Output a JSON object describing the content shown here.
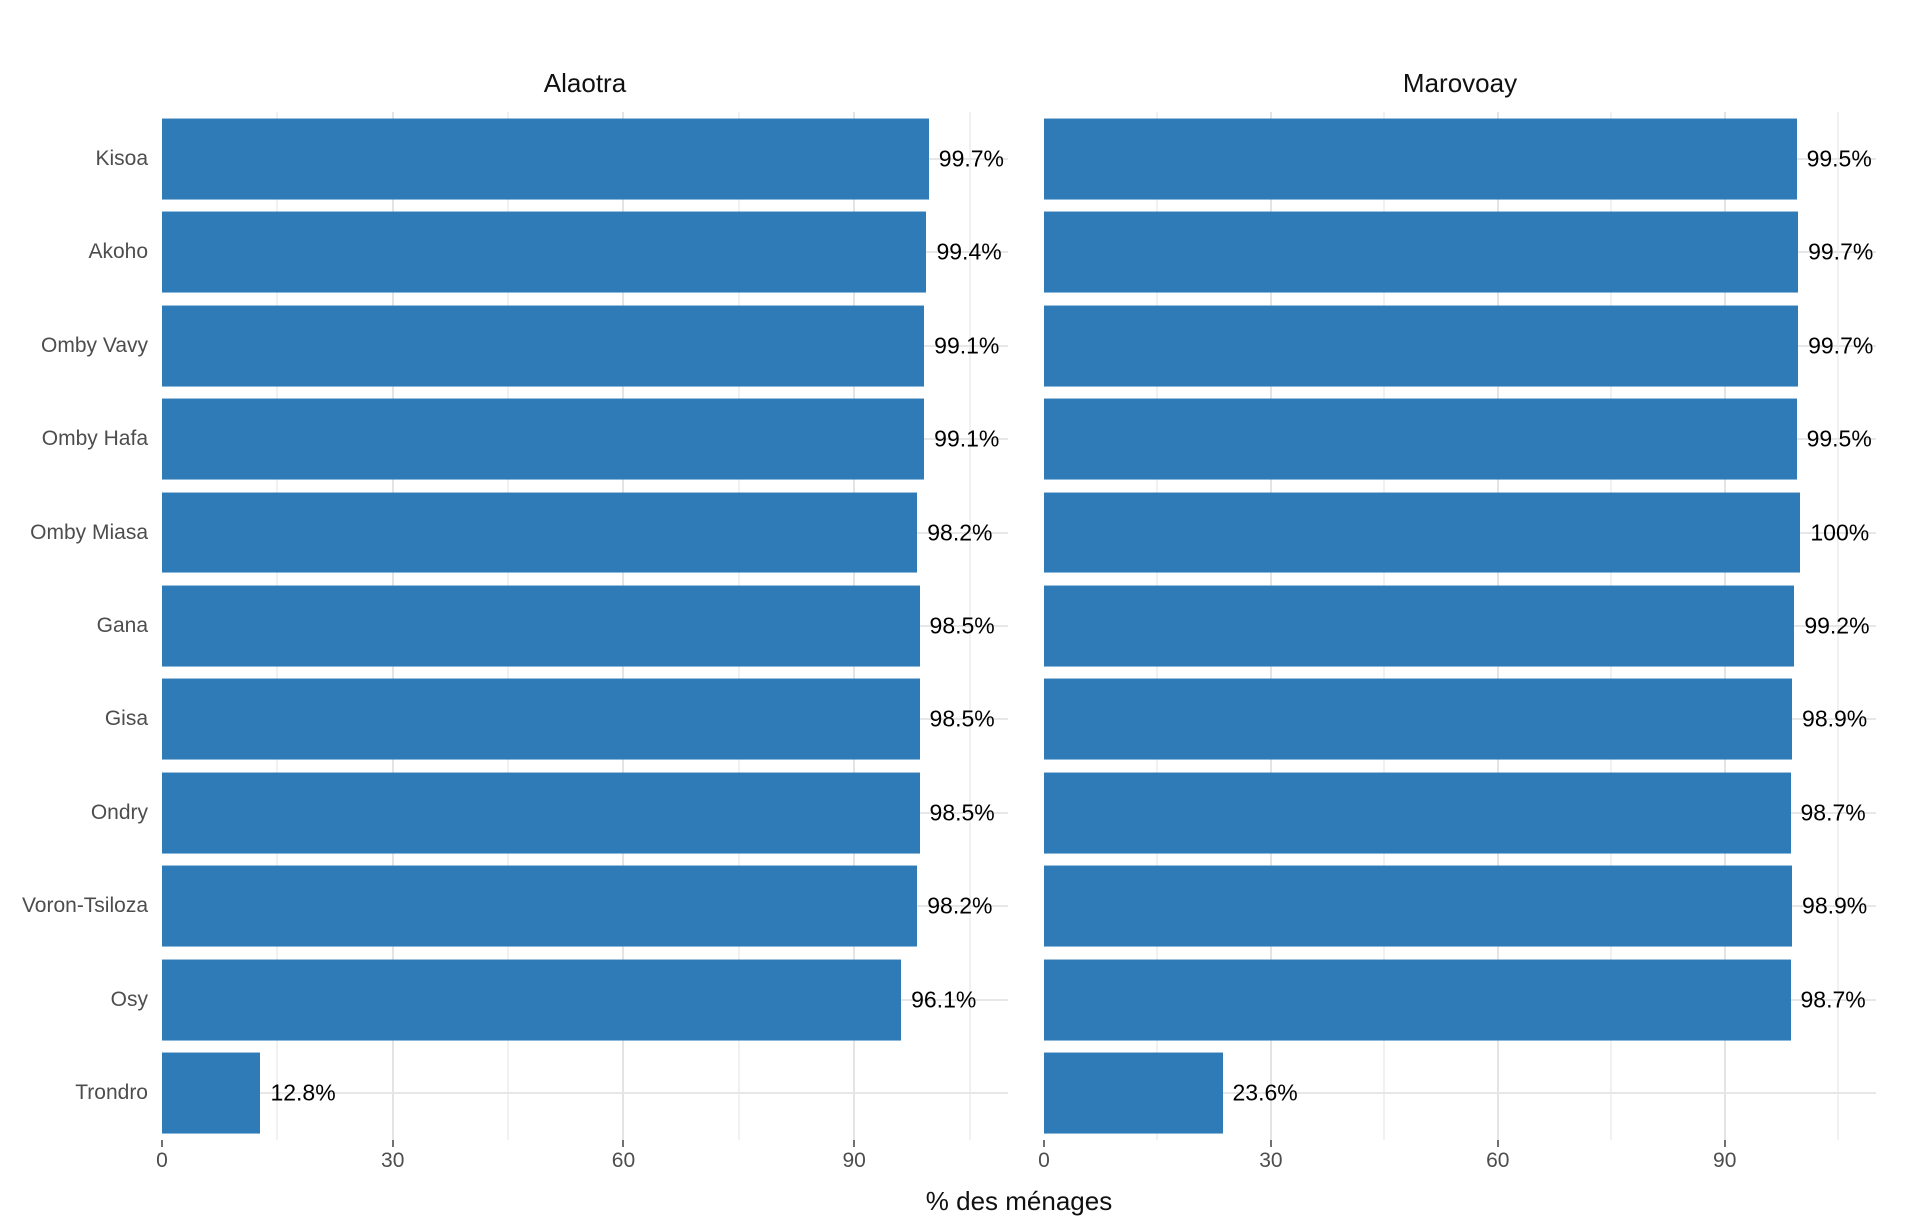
{
  "chart_data": {
    "type": "bar",
    "orientation": "horizontal",
    "title": "",
    "xlabel": "% des ménages",
    "ylabel": "",
    "xlim": [
      0,
      110
    ],
    "x_ticks": [
      0,
      30,
      60,
      90
    ],
    "x_minor_ticks": [
      15,
      45,
      75,
      105
    ],
    "grid": true,
    "legend": false,
    "bar_color": "#2e7bb8",
    "categories": [
      "Kisoa",
      "Akoho",
      "Omby Vavy",
      "Omby Hafa",
      "Omby Miasa",
      "Gana",
      "Gisa",
      "Ondry",
      "Voron-Tsiloza",
      "Osy",
      "Trondro"
    ],
    "series": [
      {
        "name": "Alaotra",
        "values": [
          99.7,
          99.4,
          99.1,
          99.1,
          98.2,
          98.5,
          98.5,
          98.5,
          98.2,
          96.1,
          12.8
        ],
        "value_labels": [
          "99.7%",
          "99.4%",
          "99.1%",
          "99.1%",
          "98.2%",
          "98.5%",
          "98.5%",
          "98.5%",
          "98.2%",
          "96.1%",
          "12.8%"
        ]
      },
      {
        "name": "Marovoay",
        "values": [
          99.5,
          99.7,
          99.7,
          99.5,
          100,
          99.2,
          98.9,
          98.7,
          98.9,
          98.7,
          23.6
        ],
        "value_labels": [
          "99.5%",
          "99.7%",
          "99.7%",
          "99.5%",
          "100%",
          "99.2%",
          "98.9%",
          "98.7%",
          "98.9%",
          "98.7%",
          "23.6%"
        ]
      }
    ]
  }
}
